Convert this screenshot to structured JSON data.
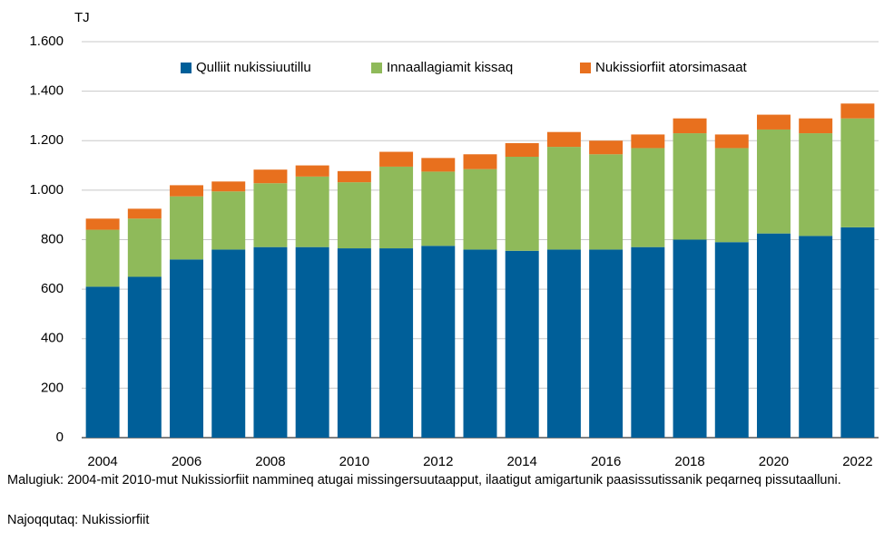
{
  "chart_data": {
    "type": "stacked_bar",
    "y_label": "TJ",
    "categories": [
      "2004",
      null,
      "2006",
      null,
      "2008",
      null,
      "2010",
      null,
      "2012",
      null,
      "2014",
      null,
      "2016",
      null,
      "2018",
      null,
      "2020",
      null,
      "2022"
    ],
    "series": [
      {
        "name": "Qulliit nukissiuutillu",
        "color": "#005f99",
        "values": [
          610,
          650,
          720,
          760,
          770,
          770,
          765,
          765,
          775,
          760,
          755,
          760,
          760,
          770,
          800,
          790,
          825,
          815,
          850
        ]
      },
      {
        "name": "Innaallagiamit kissaq",
        "color": "#8fba5a",
        "values": [
          230,
          235,
          255,
          235,
          258,
          285,
          267,
          330,
          300,
          325,
          380,
          415,
          385,
          400,
          430,
          380,
          420,
          415,
          440
        ]
      },
      {
        "name": "Nukissiorfiit atorsimasaat",
        "color": "#e8701e",
        "values": [
          45,
          40,
          45,
          40,
          55,
          45,
          45,
          60,
          55,
          60,
          55,
          60,
          55,
          55,
          60,
          55,
          60,
          60,
          60
        ]
      }
    ],
    "ylim": [
      0,
      1600
    ],
    "yticks": [
      0,
      200,
      400,
      600,
      800,
      {
        "value": 1000,
        "label": "1.000"
      },
      {
        "value": 1200,
        "label": "1.200"
      },
      {
        "value": 1400,
        "label": "1.400"
      },
      {
        "value": 1600,
        "label": "1.600"
      }
    ],
    "grid": true,
    "legend": "top",
    "notes": [
      "Malugiuk: 2004-mit 2010-mut Nukissiorfiit nammineq atugai missingersuutaapput, ilaatigut amigartunik paasissutissanik peqarneq pissutaalluni.",
      "Najoqqutaq: Nukissiorfiit"
    ]
  }
}
